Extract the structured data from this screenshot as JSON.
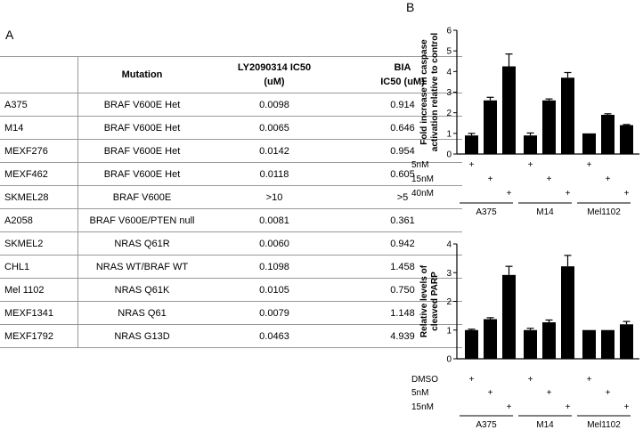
{
  "panels": {
    "a": "A",
    "b": "B"
  },
  "table": {
    "headers": [
      "",
      "Mutation",
      "LY2090314 IC50\n(uM)",
      "BIA\nIC50 (uM)"
    ],
    "rows": [
      [
        "A375",
        "BRAF V600E Het",
        "0.0098",
        "0.914"
      ],
      [
        "M14",
        "BRAF V600E Het",
        "0.0065",
        "0.646"
      ],
      [
        "MEXF276",
        "BRAF V600E Het",
        "0.0142",
        "0.954"
      ],
      [
        "MEXF462",
        "BRAF V600E Het",
        "0.0118",
        "0.605"
      ],
      [
        "SKMEL28",
        "BRAF V600E",
        ">10",
        ">5"
      ],
      [
        "A2058",
        "BRAF V600E/PTEN null",
        "0.0081",
        "0.361"
      ],
      [
        "SKMEL2",
        "NRAS Q61R",
        "0.0060",
        "0.942"
      ],
      [
        "CHL1",
        "NRAS WT/BRAF WT",
        "0.1098",
        "1.458"
      ],
      [
        "Mel 1102",
        "NRAS Q61K",
        "0.0105",
        "0.750"
      ],
      [
        "MEXF1341",
        "NRAS Q61",
        "0.0079",
        "1.148"
      ],
      [
        "MEXF1792",
        "NRAS G13D",
        "0.0463",
        "4.939"
      ]
    ]
  },
  "chart_data": [
    {
      "type": "bar",
      "ylabel": "Fold increase in caspase activation relative to control",
      "ylim": [
        0,
        6
      ],
      "yticks": [
        "0",
        "1",
        "2",
        "3",
        "4",
        "5",
        "6"
      ],
      "values": [
        0.9,
        2.6,
        4.25,
        0.9,
        2.6,
        3.7,
        1.0,
        1.9,
        1.4
      ],
      "errors": [
        0.1,
        0.15,
        0.6,
        0.12,
        0.07,
        0.25,
        0.0,
        0.05,
        0.03
      ],
      "conditions": [
        "5nM",
        "15nM",
        "40nM"
      ],
      "groups": [
        "A375",
        "M14",
        "Mel1102"
      ],
      "color": "#000000"
    },
    {
      "type": "bar",
      "ylabel": "Relative levels of cleaved PARP",
      "ylim": [
        0,
        4
      ],
      "yticks": [
        "0",
        "1",
        "2",
        "3",
        "4"
      ],
      "values": [
        1.0,
        1.38,
        2.92,
        1.0,
        1.27,
        3.22,
        1.0,
        1.0,
        1.2
      ],
      "errors": [
        0.03,
        0.05,
        0.3,
        0.06,
        0.08,
        0.38,
        0.0,
        0.0,
        0.1
      ],
      "conditions": [
        "DMSO",
        "5nM",
        "15nM"
      ],
      "groups": [
        "A375",
        "M14",
        "Mel1102"
      ],
      "color": "#000000"
    }
  ]
}
